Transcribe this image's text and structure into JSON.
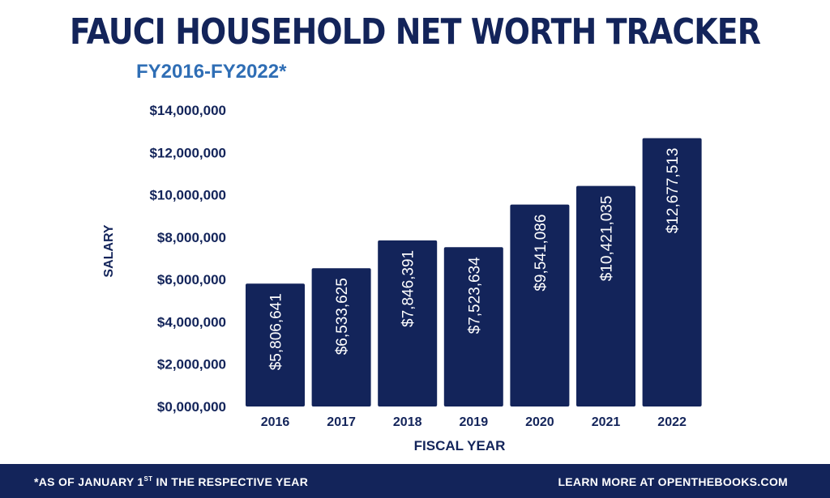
{
  "header": {
    "title": "FAUCI HOUSEHOLD NET WORTH TRACKER",
    "subtitle": "FY2016-FY2022*"
  },
  "footer": {
    "footnote_prefix": "*AS OF JANUARY 1",
    "footnote_sup": "ST",
    "footnote_suffix": " IN THE RESPECTIVE YEAR",
    "learn_more": "LEARN MORE AT OPENTHEBOOKS.COM"
  },
  "colors": {
    "bar": "#13245a",
    "title": "#13245a",
    "subtitle": "#2f6eb5",
    "footer_bg": "#13245a",
    "bar_label": "#ffffff"
  },
  "chart_data": {
    "type": "bar",
    "title": "FAUCI HOUSEHOLD NET WORTH TRACKER",
    "subtitle": "FY2016-FY2022*",
    "xlabel": "FISCAL YEAR",
    "ylabel": "SALARY",
    "categories": [
      "2016",
      "2017",
      "2018",
      "2019",
      "2020",
      "2021",
      "2022"
    ],
    "values": [
      5806641,
      6533625,
      7846391,
      7523634,
      9541086,
      10421035,
      12677513
    ],
    "value_labels": [
      "$5,806,641",
      "$6,533,625",
      "$7,846,391",
      "$7,523,634",
      "$9,541,086",
      "$10,421,035",
      "$12,677,513"
    ],
    "ylim": [
      0,
      14000000
    ],
    "yticks": [
      0,
      2000000,
      4000000,
      6000000,
      8000000,
      10000000,
      12000000,
      14000000
    ],
    "ytick_labels": [
      "$0,000,000",
      "$2,000,000",
      "$4,000,000",
      "$6,000,000",
      "$8,000,000",
      "$10,000,000",
      "$12,000,000",
      "$14,000,000"
    ],
    "grid": false,
    "legend": "none"
  }
}
